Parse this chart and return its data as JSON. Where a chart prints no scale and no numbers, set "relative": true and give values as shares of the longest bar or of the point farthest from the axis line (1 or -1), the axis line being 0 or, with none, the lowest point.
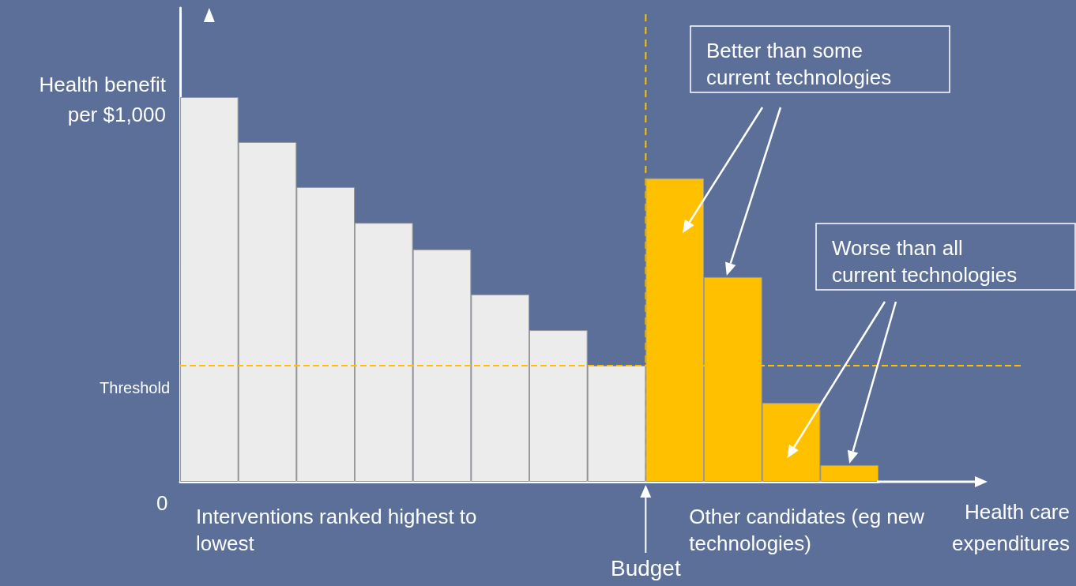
{
  "chart_data": {
    "type": "bar",
    "relative": true,
    "ylabel": "Health benefit\nper $1,000",
    "xlabel": "Health care\nexpenditures",
    "categories": [
      null,
      null,
      null,
      null,
      null,
      null,
      null,
      null,
      null,
      null,
      null,
      null
    ],
    "values": [
      1,
      0.883,
      0.766,
      0.673,
      0.604,
      0.487,
      0.394,
      0.302,
      0.789,
      0.532,
      0.205,
      0.043
    ],
    "colors": [
      "#ececec",
      "#ececec",
      "#ececec",
      "#ececec",
      "#ececec",
      "#ececec",
      "#ececec",
      "#ececec",
      "#ffc000",
      "#ffc000",
      "#ffc000",
      "#ffc000"
    ],
    "ref_lines": [
      {
        "axis": "y",
        "value": 0.302,
        "label": "Threshold",
        "color": "#ffc000",
        "line_style": "dashed"
      },
      {
        "axis": "x",
        "label": "Budget",
        "color": "#ffc000",
        "line_style": "dashed"
      }
    ],
    "annotations": [
      "0",
      "Interventions ranked highest to\nlowest",
      "Other candidates (eg new\ntechnologies)",
      "Better than some\ncurrent technologies",
      "Worse than all\ncurrent technologies"
    ],
    "grid": false
  }
}
